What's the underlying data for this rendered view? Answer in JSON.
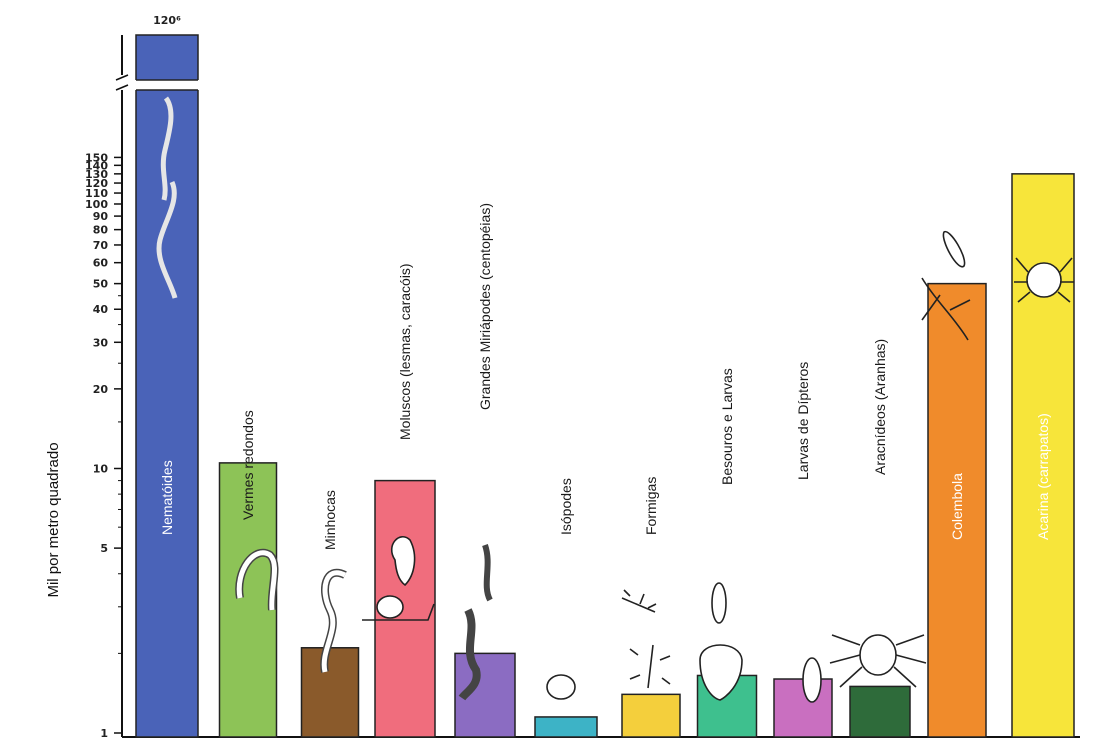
{
  "chart_data": {
    "type": "bar",
    "ylabel": "Mil por metro quadrado",
    "yticks": [
      1,
      5,
      10,
      20,
      30,
      40,
      50,
      60,
      70,
      80,
      90,
      100,
      110,
      120,
      130,
      140,
      150
    ],
    "y_scale": "log",
    "ylim": [
      1,
      160
    ],
    "axis_break": true,
    "top_value_label": "120⁶",
    "categories": [
      "Nematóides",
      "Vermes redondos",
      "Minhocas",
      "Moluscos (lesmas, caracóis)",
      "Grandes Miriápodes (centopéias)",
      "Isópodes",
      "Formigas",
      "Besouros e Larvas",
      "Larvas de Dípteros",
      "Aracnídeos (Aranhas)",
      "Colembola",
      "Acarina (carrapatos)"
    ],
    "values": [
      120000000,
      10.5,
      2.1,
      9.0,
      2.0,
      1.15,
      1.4,
      1.65,
      1.6,
      1.5,
      50,
      130
    ],
    "colors": [
      "#4a63b8",
      "#8dc357",
      "#8a5a2b",
      "#f06d7d",
      "#8b6cc2",
      "#3db3c6",
      "#f4cf3c",
      "#3ec08e",
      "#c96fc0",
      "#2e6b3a",
      "#f08b2b",
      "#f7e53a"
    ],
    "label_inside": [
      true,
      false,
      false,
      false,
      false,
      false,
      false,
      false,
      false,
      false,
      true,
      true
    ]
  }
}
